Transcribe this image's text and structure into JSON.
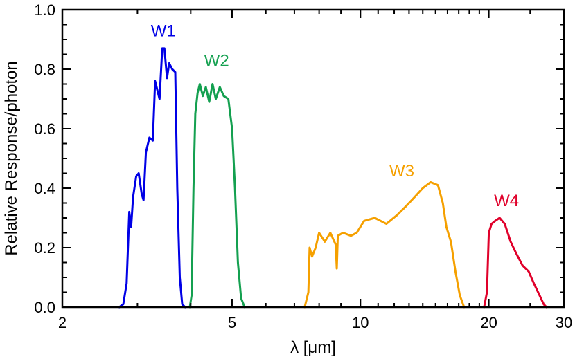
{
  "chart_data": {
    "type": "line",
    "title": "",
    "xlabel": "λ [μm]",
    "ylabel": "Relative Response/photon",
    "xscale": "log",
    "xlim": [
      2,
      30
    ],
    "ylim": [
      0,
      1.0
    ],
    "x_ticks": [
      2,
      5,
      10,
      20,
      30
    ],
    "x_tick_labels": [
      "2",
      "5",
      "10",
      "20",
      "30"
    ],
    "y_ticks": [
      0,
      0.2,
      0.4,
      0.6,
      0.8,
      1.0
    ],
    "y_tick_labels": [
      "0.0",
      "0.2",
      "0.4",
      "0.6",
      "0.8",
      "1.0"
    ],
    "grid": false,
    "legend": "none",
    "series": [
      {
        "name": "W1",
        "color": "#0000e6",
        "points": [
          [
            2.72,
            0.0
          ],
          [
            2.78,
            0.01
          ],
          [
            2.83,
            0.08
          ],
          [
            2.87,
            0.32
          ],
          [
            2.9,
            0.27
          ],
          [
            2.93,
            0.37
          ],
          [
            2.98,
            0.44
          ],
          [
            3.02,
            0.45
          ],
          [
            3.07,
            0.38
          ],
          [
            3.1,
            0.36
          ],
          [
            3.14,
            0.52
          ],
          [
            3.2,
            0.57
          ],
          [
            3.26,
            0.56
          ],
          [
            3.3,
            0.76
          ],
          [
            3.34,
            0.73
          ],
          [
            3.38,
            0.7
          ],
          [
            3.43,
            0.87
          ],
          [
            3.47,
            0.87
          ],
          [
            3.52,
            0.77
          ],
          [
            3.56,
            0.82
          ],
          [
            3.62,
            0.8
          ],
          [
            3.68,
            0.79
          ],
          [
            3.72,
            0.4
          ],
          [
            3.77,
            0.1
          ],
          [
            3.82,
            0.01
          ],
          [
            3.88,
            0.0
          ]
        ]
      },
      {
        "name": "W2",
        "color": "#14a050",
        "points": [
          [
            3.98,
            0.0
          ],
          [
            4.02,
            0.04
          ],
          [
            4.06,
            0.4
          ],
          [
            4.1,
            0.65
          ],
          [
            4.15,
            0.72
          ],
          [
            4.2,
            0.75
          ],
          [
            4.27,
            0.71
          ],
          [
            4.34,
            0.74
          ],
          [
            4.42,
            0.69
          ],
          [
            4.5,
            0.75
          ],
          [
            4.58,
            0.7
          ],
          [
            4.68,
            0.74
          ],
          [
            4.78,
            0.71
          ],
          [
            4.9,
            0.7
          ],
          [
            5.0,
            0.6
          ],
          [
            5.08,
            0.4
          ],
          [
            5.16,
            0.15
          ],
          [
            5.25,
            0.03
          ],
          [
            5.35,
            0.0
          ]
        ]
      },
      {
        "name": "W3",
        "color": "#f5a000",
        "points": [
          [
            7.4,
            0.0
          ],
          [
            7.55,
            0.05
          ],
          [
            7.6,
            0.2
          ],
          [
            7.7,
            0.17
          ],
          [
            7.85,
            0.2
          ],
          [
            8.0,
            0.25
          ],
          [
            8.25,
            0.22
          ],
          [
            8.5,
            0.25
          ],
          [
            8.75,
            0.21
          ],
          [
            8.8,
            0.13
          ],
          [
            8.85,
            0.24
          ],
          [
            9.1,
            0.25
          ],
          [
            9.5,
            0.24
          ],
          [
            9.8,
            0.25
          ],
          [
            10.2,
            0.29
          ],
          [
            10.8,
            0.3
          ],
          [
            11.5,
            0.28
          ],
          [
            12.2,
            0.31
          ],
          [
            12.8,
            0.34
          ],
          [
            13.4,
            0.37
          ],
          [
            14.0,
            0.4
          ],
          [
            14.6,
            0.42
          ],
          [
            15.2,
            0.41
          ],
          [
            15.6,
            0.35
          ],
          [
            15.9,
            0.27
          ],
          [
            16.3,
            0.22
          ],
          [
            16.7,
            0.12
          ],
          [
            17.1,
            0.04
          ],
          [
            17.5,
            0.0
          ]
        ]
      },
      {
        "name": "W4",
        "color": "#e0002a",
        "points": [
          [
            19.5,
            0.0
          ],
          [
            19.8,
            0.05
          ],
          [
            20.0,
            0.25
          ],
          [
            20.3,
            0.28
          ],
          [
            20.7,
            0.29
          ],
          [
            21.2,
            0.3
          ],
          [
            21.8,
            0.28
          ],
          [
            22.5,
            0.22
          ],
          [
            23.2,
            0.18
          ],
          [
            24.0,
            0.14
          ],
          [
            24.8,
            0.12
          ],
          [
            25.5,
            0.08
          ],
          [
            26.3,
            0.04
          ],
          [
            26.9,
            0.01
          ],
          [
            27.3,
            0.0
          ]
        ]
      }
    ],
    "annotations": [
      {
        "text": "W1",
        "x": 3.45,
        "y": 0.91,
        "color": "#0000e6"
      },
      {
        "text": "W2",
        "x": 4.6,
        "y": 0.81,
        "color": "#14a050"
      },
      {
        "text": "W3",
        "x": 12.5,
        "y": 0.44,
        "color": "#f5a000"
      },
      {
        "text": "W4",
        "x": 22.0,
        "y": 0.34,
        "color": "#e0002a"
      }
    ]
  }
}
